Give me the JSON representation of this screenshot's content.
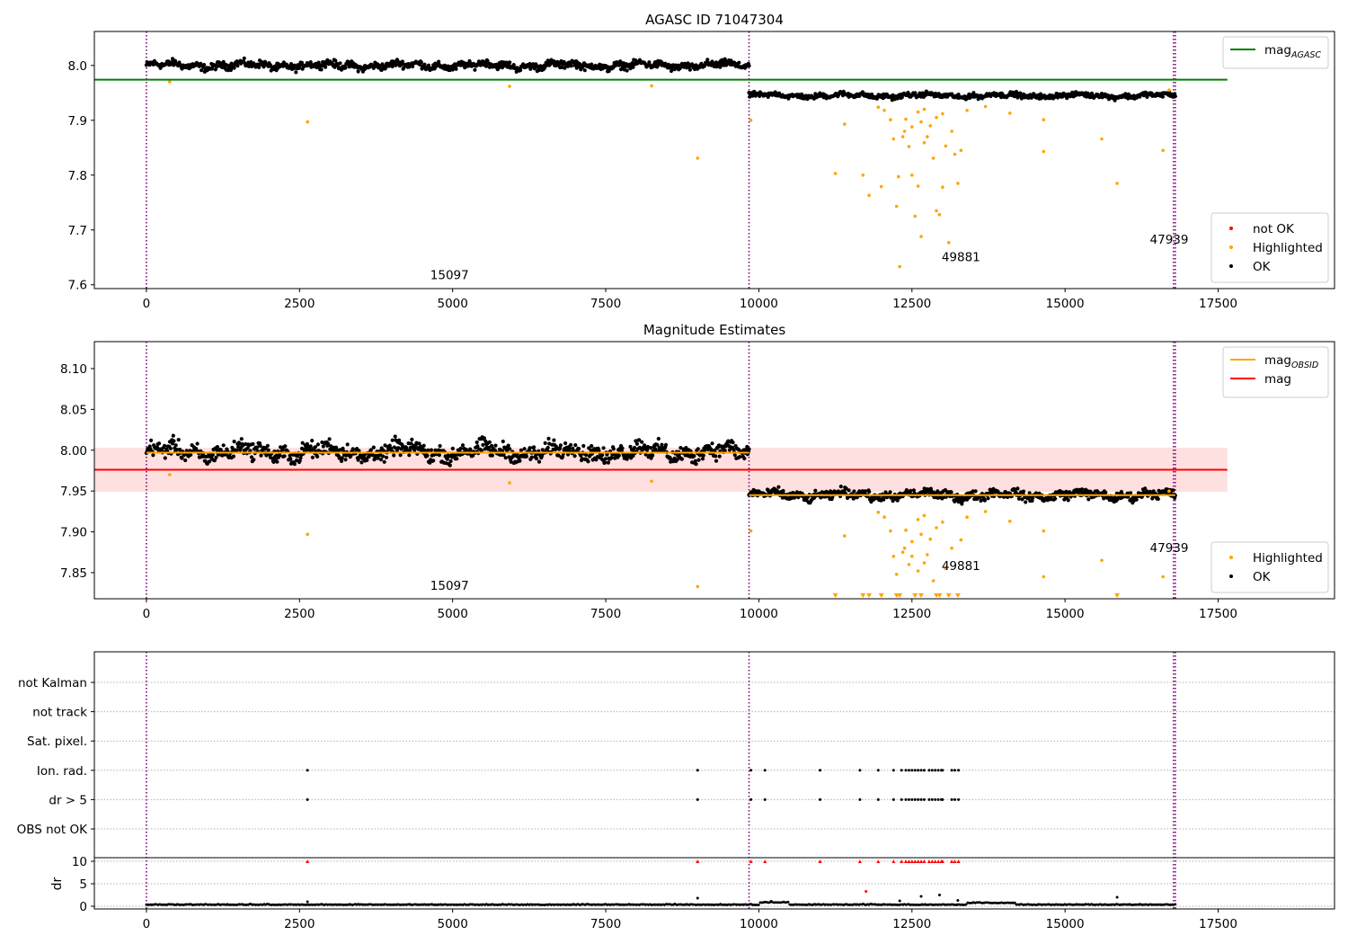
{
  "chart_data": [
    {
      "type": "scatter",
      "title": "AGASC ID 71047304",
      "xlim": [
        -850,
        19400
      ],
      "ylim": [
        7.593,
        8.062
      ],
      "xticks": [
        0,
        2500,
        5000,
        7500,
        10000,
        12500,
        15000,
        17500
      ],
      "yticks": [
        7.6,
        7.7,
        7.8,
        7.9,
        8.0
      ],
      "vlines": [
        0,
        9840,
        16770,
        16800
      ],
      "hlines": [
        {
          "name": "mag_AGASC",
          "y": 7.974,
          "x": [
            -850,
            17650
          ],
          "color": "#008000"
        }
      ],
      "segments": [
        {
          "x": [
            0,
            9840
          ],
          "center": 8.0,
          "spread": 0.012
        },
        {
          "x": [
            9840,
            16800
          ],
          "center": 7.945,
          "spread": 0.008
        }
      ],
      "annotations": [
        {
          "text": "15097",
          "x": 4950,
          "y": 7.61
        },
        {
          "text": "49881",
          "x": 13300,
          "y": 7.643
        },
        {
          "text": "47939",
          "x": 16700,
          "y": 7.675
        }
      ],
      "legends": [
        {
          "position": "upper-right",
          "entries": [
            {
              "label": "mag",
              "sub": "AGASC",
              "color": "#008000",
              "kind": "line"
            }
          ]
        },
        {
          "position": "lower-right",
          "entries": [
            {
              "label": "not OK",
              "color": "#ff0000",
              "kind": "dot"
            },
            {
              "label": "Highlighted",
              "color": "#ffa500",
              "kind": "dot"
            },
            {
              "label": "OK",
              "color": "#000000",
              "kind": "dot"
            }
          ]
        }
      ],
      "highlighted": [
        [
          380,
          7.97
        ],
        [
          2630,
          7.897
        ],
        [
          5930,
          7.962
        ],
        [
          8250,
          7.963
        ],
        [
          9000,
          7.831
        ],
        [
          9870,
          7.9
        ],
        [
          11250,
          7.803
        ],
        [
          11400,
          7.893
        ],
        [
          11700,
          7.8
        ],
        [
          11800,
          7.763
        ],
        [
          12000,
          7.779
        ],
        [
          12200,
          7.866
        ],
        [
          12250,
          7.743
        ],
        [
          12280,
          7.797
        ],
        [
          12300,
          7.633
        ],
        [
          12380,
          7.88
        ],
        [
          12450,
          7.852
        ],
        [
          12500,
          7.8
        ],
        [
          12550,
          7.725
        ],
        [
          12600,
          7.78
        ],
        [
          12650,
          7.688
        ],
        [
          12700,
          7.859
        ],
        [
          12750,
          7.87
        ],
        [
          12800,
          7.89
        ],
        [
          12850,
          7.831
        ],
        [
          12900,
          7.735
        ],
        [
          12950,
          7.728
        ],
        [
          13000,
          7.778
        ],
        [
          13050,
          7.853
        ],
        [
          13100,
          7.677
        ],
        [
          13150,
          7.88
        ],
        [
          13200,
          7.838
        ],
        [
          13250,
          7.785
        ],
        [
          13300,
          7.845
        ],
        [
          12400,
          7.902
        ],
        [
          12600,
          7.915
        ],
        [
          12700,
          7.92
        ],
        [
          12500,
          7.888
        ],
        [
          12900,
          7.905
        ],
        [
          13000,
          7.912
        ],
        [
          12350,
          7.87
        ],
        [
          12650,
          7.897
        ],
        [
          12150,
          7.901
        ],
        [
          12050,
          7.918
        ],
        [
          11950,
          7.924
        ],
        [
          13400,
          7.918
        ],
        [
          13700,
          7.925
        ],
        [
          14100,
          7.913
        ],
        [
          14650,
          7.901
        ],
        [
          14650,
          7.843
        ],
        [
          15600,
          7.866
        ],
        [
          15850,
          7.785
        ],
        [
          16600,
          7.845
        ],
        [
          16700,
          7.955
        ]
      ]
    },
    {
      "type": "scatter",
      "title": "Magnitude Estimates",
      "xlim": [
        -850,
        19400
      ],
      "ylim": [
        7.818,
        8.133
      ],
      "xticks": [
        0,
        2500,
        5000,
        7500,
        10000,
        12500,
        15000,
        17500
      ],
      "yticks": [
        7.85,
        7.9,
        7.95,
        8.0,
        8.05,
        8.1
      ],
      "vlines": [
        0,
        9840,
        16770,
        16800
      ],
      "band": {
        "y": [
          7.949,
          8.003
        ],
        "x": [
          -850,
          17650
        ],
        "color": "#ffcccc"
      },
      "hlines": [
        {
          "name": "mag",
          "y": 7.976,
          "x": [
            -850,
            17650
          ],
          "color": "#ff0000"
        },
        {
          "name": "mag_OBSID",
          "y": 7.997,
          "x": [
            0,
            9840
          ],
          "color": "#ffa500"
        },
        {
          "name": "mag_OBSID",
          "y": 7.945,
          "x": [
            9840,
            16800
          ],
          "color": "#ffa500"
        }
      ],
      "segments": [
        {
          "x": [
            0,
            9840
          ],
          "center": 7.998,
          "spread": 0.018
        },
        {
          "x": [
            9840,
            16800
          ],
          "center": 7.945,
          "spread": 0.01
        }
      ],
      "annotations": [
        {
          "text": "15097",
          "x": 4950,
          "y": 7.829
        },
        {
          "text": "49881",
          "x": 13300,
          "y": 7.853
        },
        {
          "text": "47939",
          "x": 16700,
          "y": 7.875
        }
      ],
      "legends": [
        {
          "position": "upper-right",
          "entries": [
            {
              "label": "mag",
              "sub": "OBSID",
              "color": "#ffa500",
              "kind": "line"
            },
            {
              "label": "mag",
              "color": "#ff0000",
              "kind": "line"
            }
          ]
        },
        {
          "position": "lower-right",
          "entries": [
            {
              "label": "Highlighted",
              "color": "#ffa500",
              "kind": "dot"
            },
            {
              "label": "OK",
              "color": "#000000",
              "kind": "dot"
            }
          ]
        }
      ],
      "highlighted": [
        [
          380,
          7.97
        ],
        [
          2630,
          7.897
        ],
        [
          5930,
          7.96
        ],
        [
          8250,
          7.962
        ],
        [
          9000,
          7.833
        ],
        [
          9870,
          7.901
        ],
        [
          11400,
          7.895
        ],
        [
          12200,
          7.87
        ],
        [
          12250,
          7.848
        ],
        [
          12380,
          7.88
        ],
        [
          12450,
          7.86
        ],
        [
          12500,
          7.87
        ],
        [
          12600,
          7.852
        ],
        [
          12700,
          7.862
        ],
        [
          12750,
          7.872
        ],
        [
          12800,
          7.891
        ],
        [
          12850,
          7.84
        ],
        [
          13050,
          7.855
        ],
        [
          13150,
          7.88
        ],
        [
          13300,
          7.89
        ],
        [
          12400,
          7.902
        ],
        [
          12600,
          7.915
        ],
        [
          12700,
          7.92
        ],
        [
          12500,
          7.888
        ],
        [
          12900,
          7.905
        ],
        [
          13000,
          7.912
        ],
        [
          12350,
          7.875
        ],
        [
          12650,
          7.897
        ],
        [
          12150,
          7.901
        ],
        [
          12050,
          7.918
        ],
        [
          11950,
          7.924
        ],
        [
          13400,
          7.918
        ],
        [
          13700,
          7.925
        ],
        [
          14100,
          7.913
        ],
        [
          14650,
          7.901
        ],
        [
          14650,
          7.845
        ],
        [
          15600,
          7.865
        ],
        [
          16600,
          7.845
        ],
        [
          16700,
          7.95
        ]
      ],
      "below_range": [
        11250,
        11700,
        11800,
        12000,
        12250,
        12300,
        12550,
        12650,
        12900,
        12950,
        13100,
        13250,
        15850
      ]
    },
    {
      "type": "scatter",
      "title": "",
      "xlim": [
        -850,
        19400
      ],
      "xticks": [
        0,
        2500,
        5000,
        7500,
        10000,
        12500,
        15000,
        17500
      ],
      "vlines": [
        0,
        9840,
        16770,
        16800
      ],
      "flags": [
        "not Kalman",
        "not track",
        "Sat. pixel.",
        "Ion. rad.",
        "dr > 5",
        "OBS not OK"
      ],
      "flag_x": [
        2630,
        9000,
        9870,
        10100,
        11000,
        11650,
        11950,
        12200,
        12330,
        12400,
        12450,
        12500,
        12550,
        12600,
        12650,
        12700,
        12780,
        12830,
        12880,
        12930,
        12980,
        13000,
        13150,
        13200,
        13260
      ],
      "flag_rows": [
        "Ion. rad.",
        "dr > 5"
      ],
      "dr": {
        "ylabel": "dr",
        "ylim": [
          -0.5,
          10.5
        ],
        "yticks": [
          0,
          5,
          10
        ],
        "clipped_at": 10,
        "baseline": 0.3,
        "spikes": [
          [
            2630,
            1.0
          ],
          [
            9000,
            1.8
          ],
          [
            10200,
            1.1
          ],
          [
            11750,
            3.3
          ],
          [
            12300,
            1.2
          ],
          [
            12650,
            2.2
          ],
          [
            12950,
            2.5
          ],
          [
            13250,
            1.3
          ],
          [
            15850,
            2.0
          ]
        ]
      }
    }
  ]
}
